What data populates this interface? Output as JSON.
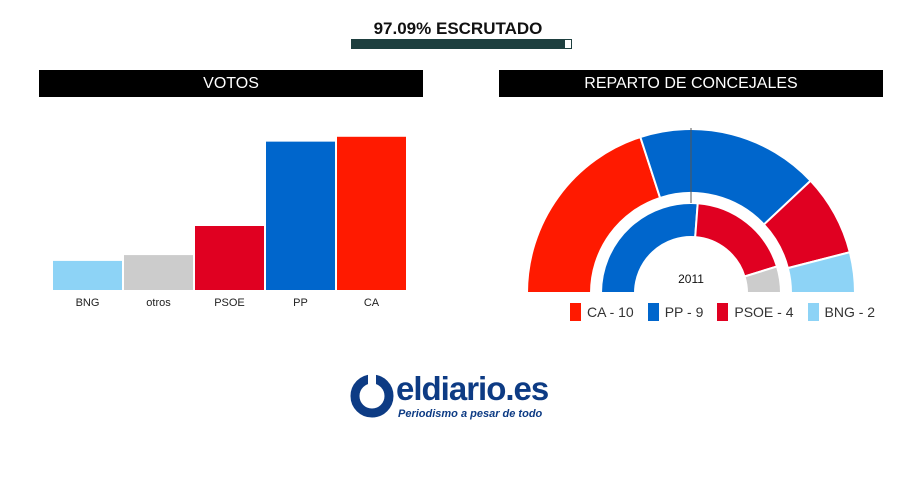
{
  "scrutiny": {
    "label": "97.09% ESCRUTADO",
    "progress": 0.9709,
    "color": "#1e3f3f"
  },
  "panels": {
    "votes_title": "VOTOS",
    "seats_title": "REPARTO DE CONCEJALES"
  },
  "chart_data": [
    {
      "type": "bar",
      "title": "VOTOS",
      "categories": [
        "BNG",
        "otros",
        "PSOE",
        "PP",
        "CA"
      ],
      "values": [
        30,
        36,
        66,
        153,
        158
      ],
      "colors": [
        "#8dd3f6",
        "#cccccc",
        "#e00021",
        "#0066cc",
        "#ff1a00"
      ],
      "ylim": [
        0,
        165
      ],
      "grid": false
    },
    {
      "type": "pie",
      "title": "REPARTO DE CONCEJALES",
      "series": [
        {
          "name": "",
          "categories": [
            "CA",
            "PP",
            "PSOE",
            "BNG"
          ],
          "values": [
            10,
            9,
            4,
            2
          ],
          "colors": [
            "#ff1a00",
            "#0066cc",
            "#e00021",
            "#8dd3f6"
          ]
        },
        {
          "name": "2011",
          "categories": [
            "PP",
            "PSOE",
            "otros"
          ],
          "values": [
            11,
            8,
            2
          ],
          "colors": [
            "#0066cc",
            "#e00021",
            "#cccccc"
          ]
        }
      ],
      "legend": [
        {
          "label": "CA - 10",
          "color": "#ff1a00"
        },
        {
          "label": "PP - 9",
          "color": "#0066cc"
        },
        {
          "label": "PSOE - 4",
          "color": "#e00021"
        },
        {
          "label": "BNG - 2",
          "color": "#8dd3f6"
        }
      ],
      "legend_position": "bottom"
    }
  ],
  "logo": {
    "name": "eldiario.es",
    "tagline": "Periodismo a pesar de todo",
    "color": "#0d3b84"
  }
}
